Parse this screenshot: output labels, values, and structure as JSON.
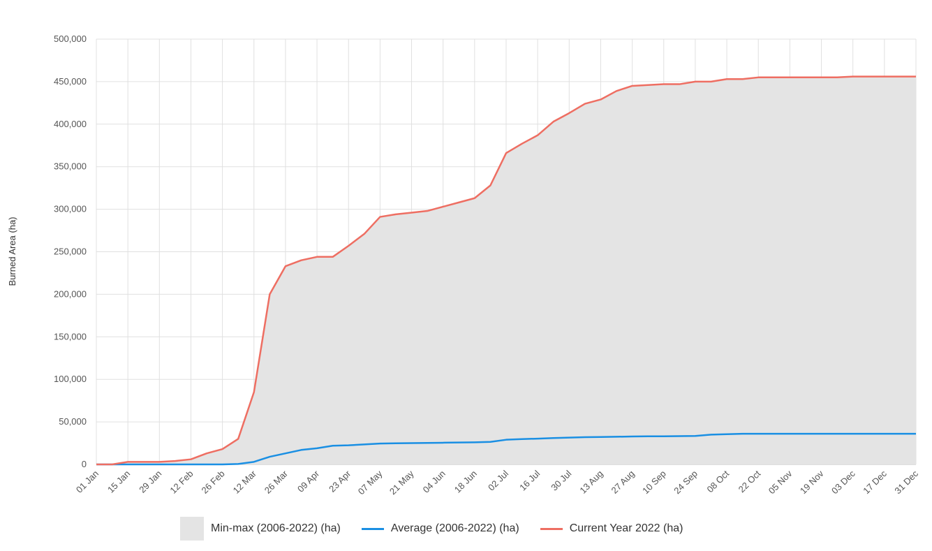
{
  "chart_data": {
    "type": "line",
    "ylabel": "Burned Area (ha)",
    "xlabel": "",
    "ylim": [
      0,
      500000
    ],
    "yticks": [
      "0",
      "50,000",
      "100,000",
      "150,000",
      "200,000",
      "250,000",
      "300,000",
      "350,000",
      "400,000",
      "450,000",
      "500,000"
    ],
    "ytick_values": [
      0,
      50000,
      100000,
      150000,
      200000,
      250000,
      300000,
      350000,
      400000,
      450000,
      500000
    ],
    "x_labels": [
      "01 Jan",
      "15 Jan",
      "29 Jan",
      "12 Feb",
      "26 Feb",
      "12 Mar",
      "26 Mar",
      "09 Apr",
      "23 Apr",
      "07 May",
      "21 May",
      "04 Jun",
      "18 Jun",
      "02 Jul",
      "16 Jul",
      "30 Jul",
      "13 Aug",
      "27 Aug",
      "10 Sep",
      "24 Sep",
      "08 Oct",
      "22 Oct",
      "05 Nov",
      "19 Nov",
      "03 Dec",
      "17 Dec",
      "31 Dec"
    ],
    "x_dates": [
      "01 Jan",
      "08 Jan",
      "15 Jan",
      "22 Jan",
      "29 Jan",
      "05 Feb",
      "12 Feb",
      "19 Feb",
      "26 Feb",
      "05 Mar",
      "12 Mar",
      "19 Mar",
      "26 Mar",
      "02 Apr",
      "09 Apr",
      "16 Apr",
      "23 Apr",
      "30 Apr",
      "07 May",
      "14 May",
      "21 May",
      "28 May",
      "04 Jun",
      "11 Jun",
      "18 Jun",
      "25 Jun",
      "02 Jul",
      "09 Jul",
      "16 Jul",
      "23 Jul",
      "30 Jul",
      "06 Aug",
      "13 Aug",
      "20 Aug",
      "27 Aug",
      "03 Sep",
      "10 Sep",
      "17 Sep",
      "24 Sep",
      "01 Oct",
      "08 Oct",
      "15 Oct",
      "22 Oct",
      "29 Oct",
      "05 Nov",
      "12 Nov",
      "19 Nov",
      "26 Nov",
      "03 Dec",
      "10 Dec",
      "17 Dec",
      "24 Dec",
      "31 Dec"
    ],
    "grid": true,
    "legend_position": "bottom",
    "series": [
      {
        "name": "Min-max (2006-2022) (ha)",
        "kind": "area",
        "color": "#e4e4e4",
        "min": [
          0,
          0,
          0,
          0,
          0,
          0,
          0,
          0,
          0,
          0,
          0,
          0,
          0,
          0,
          0,
          0,
          0,
          0,
          0,
          0,
          0,
          0,
          0,
          0,
          0,
          0,
          0,
          0,
          0,
          0,
          0,
          0,
          0,
          0,
          0,
          0,
          0,
          0,
          0,
          0,
          0,
          0,
          0,
          0,
          0,
          0,
          0,
          0,
          0,
          0,
          0,
          0,
          0
        ],
        "max": [
          0,
          0,
          3000,
          3000,
          3000,
          4000,
          6000,
          13000,
          18000,
          30000,
          85000,
          200000,
          233000,
          240000,
          244000,
          244000,
          257000,
          271000,
          291000,
          294000,
          296000,
          298000,
          303000,
          308000,
          313000,
          328000,
          366000,
          377000,
          387000,
          403000,
          413000,
          424000,
          429000,
          439000,
          445000,
          446000,
          447000,
          447000,
          450000,
          450000,
          453000,
          453000,
          455000,
          455000,
          455000,
          455000,
          455000,
          455000,
          456000,
          456000,
          456000,
          456000,
          456000
        ]
      },
      {
        "name": "Average (2006-2022) (ha)",
        "kind": "line",
        "color": "#1a8fe3",
        "values": [
          0,
          0,
          0,
          0,
          0,
          0,
          0,
          0,
          0,
          500,
          3000,
          9000,
          13000,
          17000,
          19000,
          22000,
          22500,
          23500,
          24500,
          24800,
          25000,
          25200,
          25500,
          25800,
          26000,
          26500,
          29000,
          29800,
          30300,
          31000,
          31500,
          32000,
          32200,
          32500,
          32800,
          33000,
          33000,
          33200,
          33500,
          35000,
          35500,
          36000,
          36000,
          36000,
          36000,
          36000,
          36000,
          36000,
          36000,
          36000,
          36000,
          36000,
          36000
        ]
      },
      {
        "name": "Current Year 2022 (ha)",
        "kind": "line",
        "color": "#ee6e62",
        "values": [
          0,
          0,
          3000,
          3000,
          3000,
          4000,
          6000,
          13000,
          18000,
          30000,
          85000,
          200000,
          233000,
          240000,
          244000,
          244000,
          257000,
          271000,
          291000,
          294000,
          296000,
          298000,
          303000,
          308000,
          313000,
          328000,
          366000,
          377000,
          387000,
          403000,
          413000,
          424000,
          429000,
          439000,
          445000,
          446000,
          447000,
          447000,
          450000,
          450000,
          453000,
          453000,
          455000,
          455000,
          455000,
          455000,
          455000,
          455000,
          456000,
          456000,
          456000,
          456000,
          456000
        ]
      }
    ]
  },
  "legend": {
    "area_label": "Min-max (2006-2022) (ha)",
    "avg_label": "Average (2006-2022) (ha)",
    "current_label": "Current Year 2022 (ha)"
  }
}
